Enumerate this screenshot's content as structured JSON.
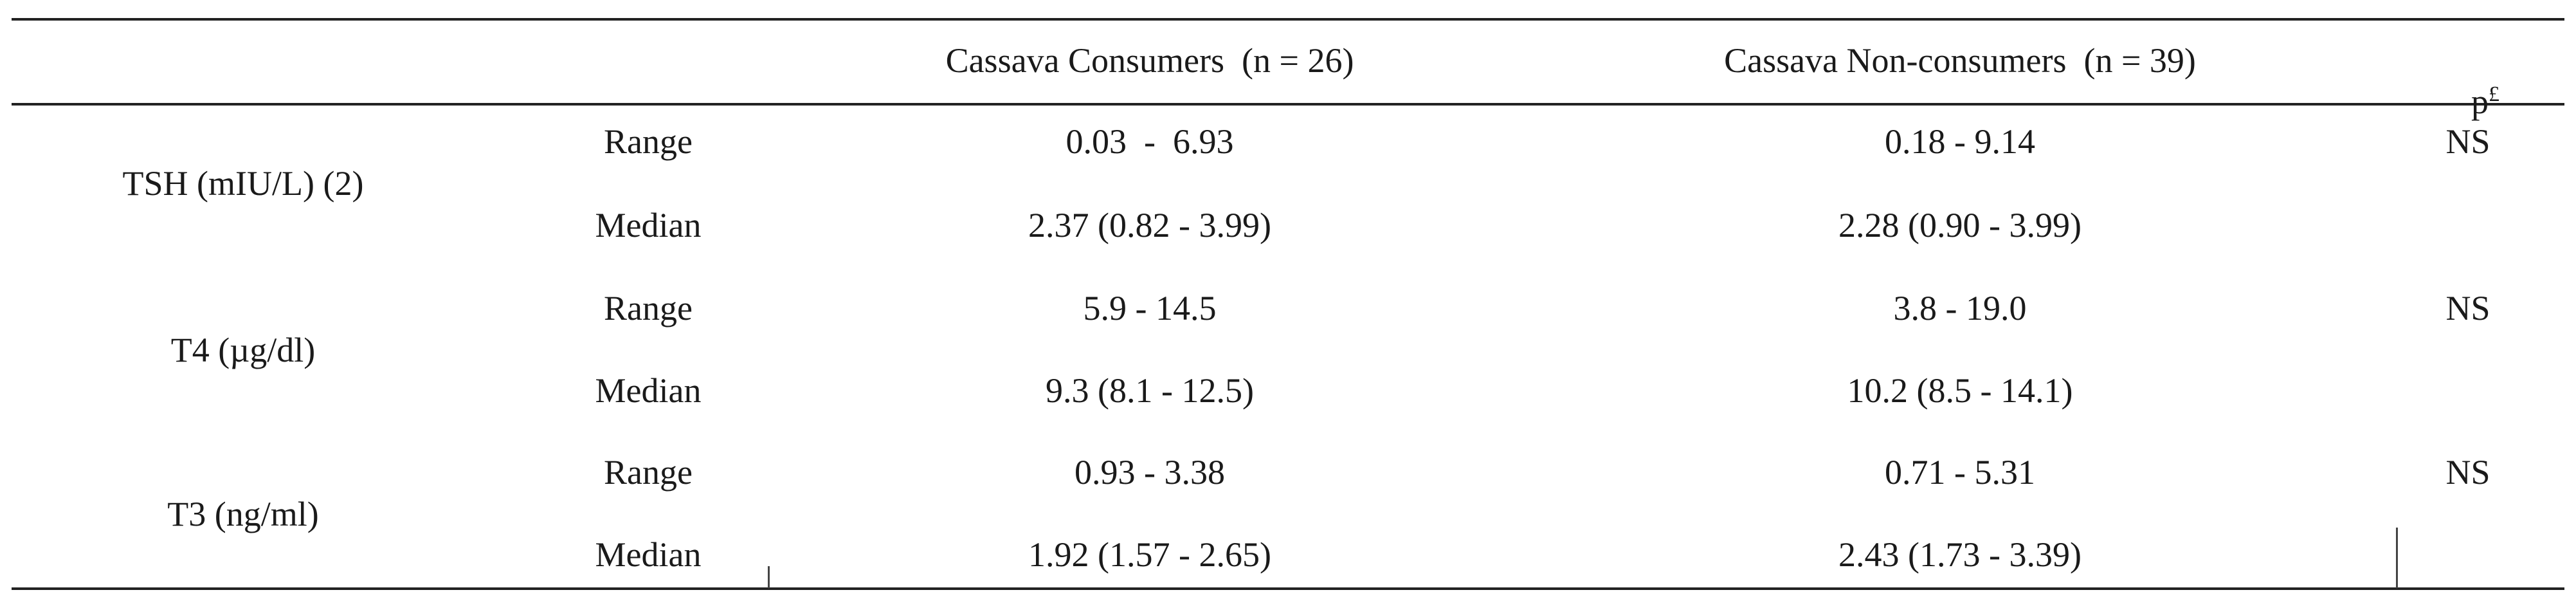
{
  "table": {
    "headers": {
      "consumers": "Cassava Consumers  (n = 26)",
      "non_consumers": "Cassava Non-consumers  (n = 39)",
      "p_base": "p",
      "p_sup": "£"
    },
    "groups": [
      {
        "label": "TSH (mIU/L) (2)",
        "rows": [
          {
            "stat": "Range",
            "consumers": "0.03  -  6.93",
            "non_consumers": "0.18 - 9.14",
            "p": "NS"
          },
          {
            "stat": "Median",
            "consumers": "2.37 (0.82 - 3.99)",
            "non_consumers": "2.28 (0.90 - 3.99)",
            "p": ""
          }
        ]
      },
      {
        "label": "T4 (µg/dl)",
        "rows": [
          {
            "stat": "Range",
            "consumers": "5.9 - 14.5",
            "non_consumers": "3.8 - 19.0",
            "p": "NS"
          },
          {
            "stat": "Median",
            "consumers": "9.3 (8.1 - 12.5)",
            "non_consumers": "10.2 (8.5 - 14.1)",
            "p": ""
          }
        ]
      },
      {
        "label": "T3 (ng/ml)",
        "rows": [
          {
            "stat": "Range",
            "consumers": "0.93 - 3.38",
            "non_consumers": "0.71 - 5.31",
            "p": "NS"
          },
          {
            "stat": "Median",
            "consumers": "1.92 (1.57 - 2.65)",
            "non_consumers": "2.43 (1.73 - 3.39)",
            "p": ""
          }
        ]
      }
    ]
  }
}
